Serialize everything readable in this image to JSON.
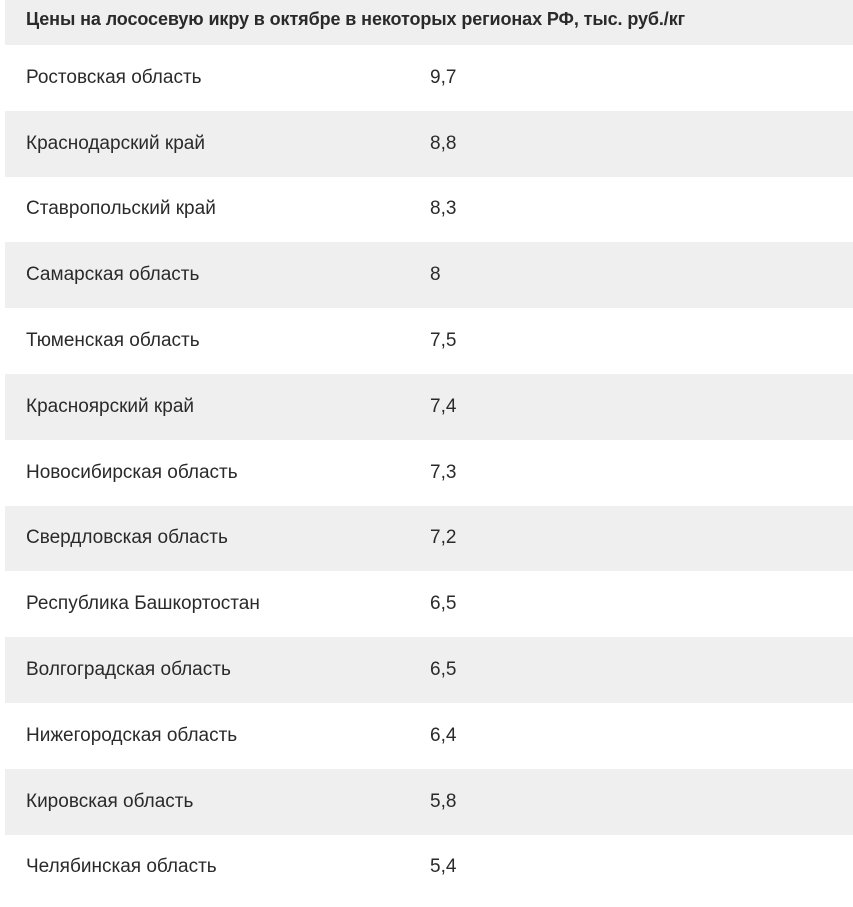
{
  "table": {
    "title": "Цены на лососевую икру в октябре в некоторых регионах РФ, тыс. руб./кг",
    "rows": [
      {
        "region": "Ростовская область",
        "value": "9,7"
      },
      {
        "region": "Краснодарский край",
        "value": "8,8"
      },
      {
        "region": "Ставропольский край",
        "value": "8,3"
      },
      {
        "region": "Самарская область",
        "value": "8"
      },
      {
        "region": "Тюменская область",
        "value": "7,5"
      },
      {
        "region": "Красноярский край",
        "value": "7,4"
      },
      {
        "region": "Новосибирская область",
        "value": "7,3"
      },
      {
        "region": "Свердловская область",
        "value": "7,2"
      },
      {
        "region": "Республика Башкортостан",
        "value": "6,5"
      },
      {
        "region": "Волгоградская область",
        "value": "6,5"
      },
      {
        "region": "Нижегородская область",
        "value": "6,4"
      },
      {
        "region": "Кировская область",
        "value": "5,8"
      },
      {
        "region": "Челябинская область",
        "value": "5,4"
      }
    ]
  },
  "colors": {
    "stripe": "#efefef",
    "background": "#ffffff",
    "text": "#2a2a2a"
  }
}
